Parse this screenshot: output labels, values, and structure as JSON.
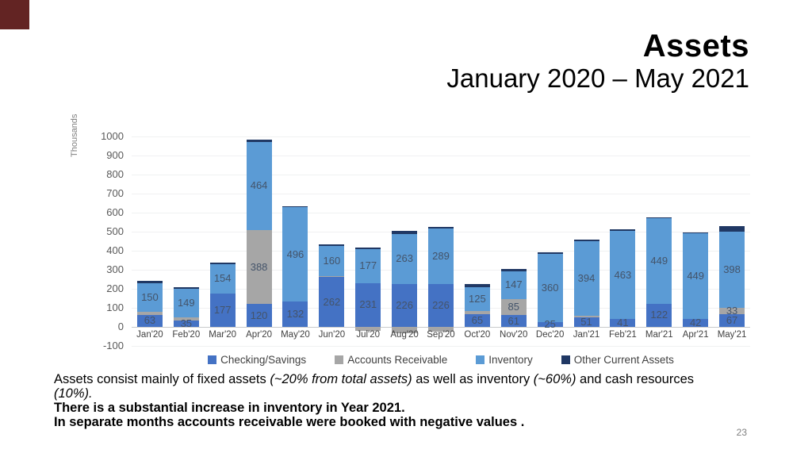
{
  "slide": {
    "title": "Assets",
    "subtitle": "January 2020 – May 2021",
    "page_number": "23",
    "accent_color": "#632423"
  },
  "chart_data": {
    "type": "bar",
    "stacked": true,
    "ylabel": "Thousands",
    "ylim": [
      -100,
      1000
    ],
    "ytick_step": 100,
    "grid": "horizontal-faint",
    "legend_position": "bottom",
    "label_min_value": 25,
    "axis_tick_color": "#595959",
    "data_label_color": "#44546A",
    "categories": [
      "Jan'20",
      "Feb'20",
      "Mar'20",
      "Apr'20",
      "May'20",
      "Jun'20",
      "Jul'20",
      "Aug'20",
      "Sep'20",
      "Oct'20",
      "Nov'20",
      "Dec'20",
      "Jan'21",
      "Feb'21",
      "Mar'21",
      "Apr'21",
      "May'21"
    ],
    "series": [
      {
        "name": "Checking/Savings",
        "color": "#4472C4",
        "show_labels": true,
        "values": [
          63,
          35,
          177,
          120,
          132,
          262,
          231,
          226,
          226,
          65,
          61,
          25,
          51,
          41,
          122,
          42,
          67
        ]
      },
      {
        "name": "Accounts Receivable",
        "color": "#A6A6A6",
        "show_labels": true,
        "values": [
          15,
          14,
          0,
          388,
          0,
          5,
          -20,
          -35,
          -25,
          20,
          85,
          0,
          6,
          0,
          0,
          0,
          33
        ]
      },
      {
        "name": "Inventory",
        "color": "#5B9BD5",
        "show_labels": true,
        "values": [
          150,
          149,
          154,
          464,
          496,
          160,
          177,
          263,
          289,
          125,
          147,
          360,
          394,
          463,
          449,
          449,
          398
        ]
      },
      {
        "name": "Other Current Assets",
        "color": "#203864",
        "show_labels": false,
        "values": [
          12,
          12,
          8,
          10,
          6,
          6,
          8,
          14,
          8,
          13,
          10,
          8,
          6,
          8,
          6,
          5,
          30
        ]
      }
    ]
  },
  "body": {
    "line1": [
      {
        "t": "Assets consist mainly of fixed assets ",
        "i": false
      },
      {
        "t": "(~20% from total assets)",
        "i": true
      },
      {
        "t": " as well as inventory ",
        "i": false
      },
      {
        "t": "(~60%)",
        "i": true
      },
      {
        "t": " and cash resources",
        "i": false
      }
    ],
    "line2": [
      {
        "t": "(10%).",
        "i": true
      }
    ],
    "line3": "There is a substantial increase in inventory in Year 2021.",
    "line4": "In separate months accounts receivable were booked with negative values ."
  }
}
